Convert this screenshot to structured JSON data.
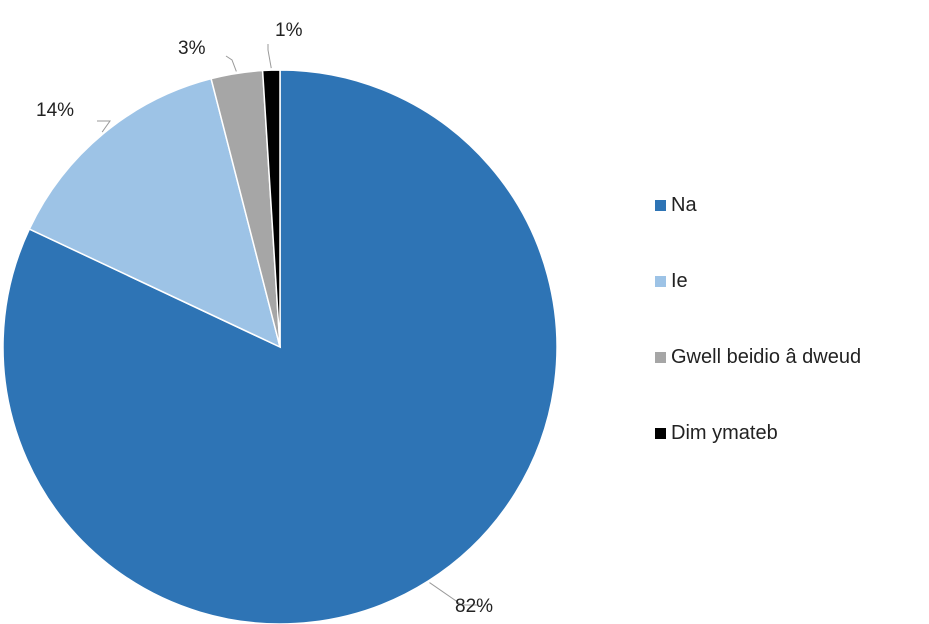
{
  "chart_data": {
    "type": "pie",
    "slices": [
      {
        "label": "Na",
        "value": 82,
        "display": "82%",
        "color": "#2E74B5"
      },
      {
        "label": "Ie",
        "value": 14,
        "display": "14%",
        "color": "#9DC3E6"
      },
      {
        "label": "Gwell beidio â dweud",
        "value": 3,
        "display": "3%",
        "color": "#A6A6A6"
      },
      {
        "label": "Dim ymateb",
        "value": 1,
        "display": "1%",
        "color": "#000000"
      }
    ],
    "legend_position": "right",
    "start": "12 o'clock",
    "direction": "clockwise"
  }
}
